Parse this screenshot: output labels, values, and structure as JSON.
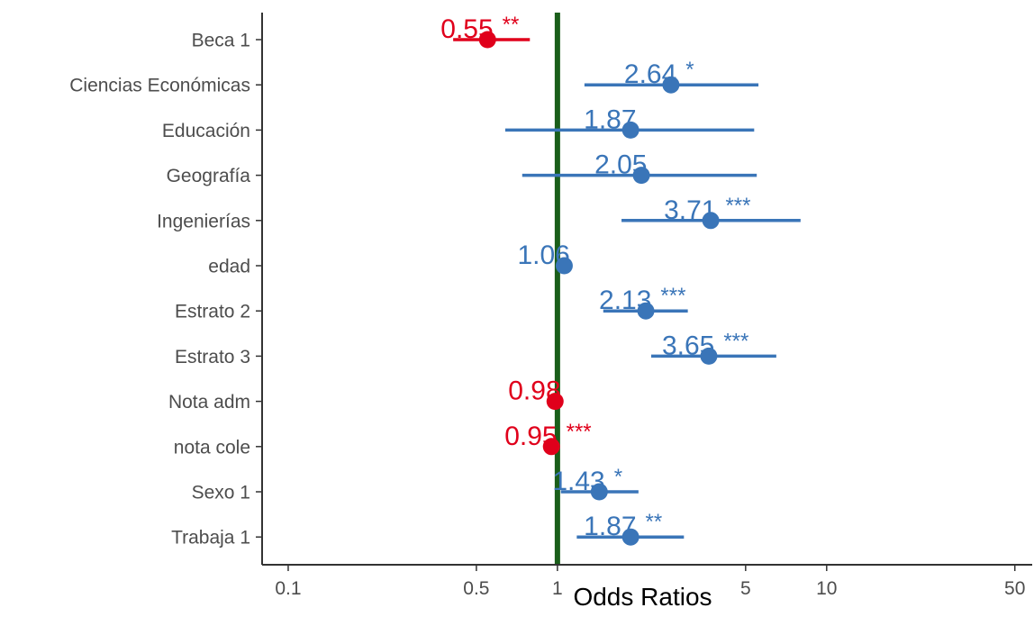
{
  "chart_data": {
    "type": "forest",
    "title": "",
    "xlabel": "Odds Ratios",
    "ylabel": "",
    "x_scale": "log",
    "xlim": [
      0.08,
      58
    ],
    "x_ticks": [
      0.1,
      0.5,
      1,
      5,
      10,
      50
    ],
    "x_tick_labels": [
      "0.1",
      "0.5",
      "1",
      "5",
      "10",
      "50"
    ],
    "reference_line": {
      "value": 1,
      "color": "#1a5e1a"
    },
    "colors": {
      "positive": "#3a75b8",
      "negative": "#e0001b"
    },
    "grid": false,
    "rows": [
      {
        "term": "Beca 1",
        "estimate": 0.55,
        "ci_low": 0.41,
        "ci_high": 0.79,
        "label": "0.55",
        "signif": "**",
        "direction": "negative"
      },
      {
        "term": "Ciencias Económicas",
        "estimate": 2.64,
        "ci_low": 1.26,
        "ci_high": 5.58,
        "label": "2.64",
        "signif": "*",
        "direction": "positive"
      },
      {
        "term": "Educación",
        "estimate": 1.87,
        "ci_low": 0.64,
        "ci_high": 5.38,
        "label": "1.87",
        "signif": "",
        "direction": "positive"
      },
      {
        "term": "Geografía",
        "estimate": 2.05,
        "ci_low": 0.74,
        "ci_high": 5.5,
        "label": "2.05",
        "signif": "",
        "direction": "positive"
      },
      {
        "term": "Ingenierías",
        "estimate": 3.71,
        "ci_low": 1.73,
        "ci_high": 8.0,
        "label": "3.71",
        "signif": "***",
        "direction": "positive"
      },
      {
        "term": "edad",
        "estimate": 1.06,
        "ci_low": 1.03,
        "ci_high": 1.09,
        "label": "1.06",
        "signif": "",
        "direction": "positive"
      },
      {
        "term": "Estrato 2",
        "estimate": 2.13,
        "ci_low": 1.48,
        "ci_high": 3.05,
        "label": "2.13",
        "signif": "***",
        "direction": "positive"
      },
      {
        "term": "Estrato 3",
        "estimate": 3.65,
        "ci_low": 2.23,
        "ci_high": 6.5,
        "label": "3.65",
        "signif": "***",
        "direction": "positive"
      },
      {
        "term": "Nota adm",
        "estimate": 0.98,
        "ci_low": 0.97,
        "ci_high": 0.99,
        "label": "0.98",
        "signif": "",
        "direction": "negative"
      },
      {
        "term": "nota cole",
        "estimate": 0.95,
        "ci_low": 0.93,
        "ci_high": 0.97,
        "label": "0.95",
        "signif": "***",
        "direction": "negative"
      },
      {
        "term": "Sexo 1",
        "estimate": 1.43,
        "ci_low": 1.03,
        "ci_high": 2.0,
        "label": "1.43",
        "signif": "*",
        "direction": "positive"
      },
      {
        "term": "Trabaja 1",
        "estimate": 1.87,
        "ci_low": 1.18,
        "ci_high": 2.95,
        "label": "1.87",
        "signif": "**",
        "direction": "positive"
      }
    ]
  }
}
